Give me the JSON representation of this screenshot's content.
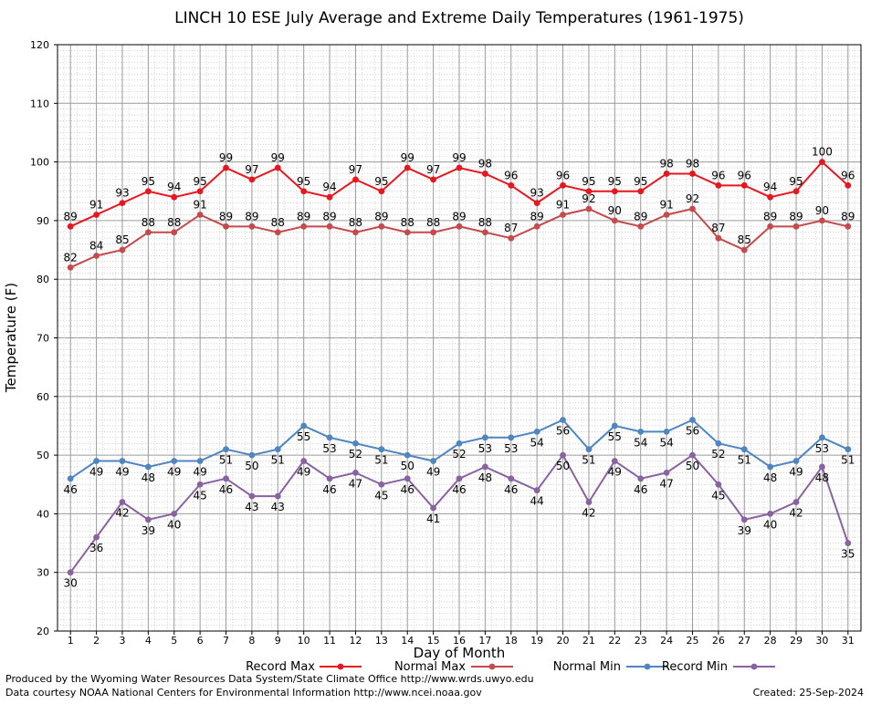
{
  "chart_data": {
    "type": "line",
    "title": "LINCH 10 ESE July Average and Extreme Daily Temperatures (1961-1975)",
    "xlabel": "Day of Month",
    "ylabel": "Temperature (F)",
    "ylim": [
      20,
      120
    ],
    "yticks": [
      20,
      30,
      40,
      50,
      60,
      70,
      80,
      90,
      100,
      110,
      120
    ],
    "categories": [
      1,
      2,
      3,
      4,
      5,
      6,
      7,
      8,
      9,
      10,
      11,
      12,
      13,
      14,
      15,
      16,
      17,
      18,
      19,
      20,
      21,
      22,
      23,
      24,
      25,
      26,
      27,
      28,
      29,
      30,
      31
    ],
    "grid": true,
    "legend_position": "bottom",
    "series": [
      {
        "name": "Record Max",
        "color": "#e8161e",
        "label_pos": "above",
        "values": [
          89,
          91,
          93,
          95,
          94,
          95,
          99,
          97,
          99,
          95,
          94,
          97,
          95,
          99,
          97,
          99,
          98,
          96,
          93,
          96,
          95,
          95,
          95,
          98,
          98,
          96,
          96,
          94,
          95,
          100,
          96
        ]
      },
      {
        "name": "Normal Max",
        "color": "#c44a4d",
        "label_pos": "above",
        "values": [
          82,
          84,
          85,
          88,
          88,
          91,
          89,
          89,
          88,
          89,
          89,
          88,
          89,
          88,
          88,
          89,
          88,
          87,
          89,
          91,
          92,
          90,
          89,
          91,
          92,
          87,
          85,
          89,
          89,
          90,
          89
        ]
      },
      {
        "name": "Normal Min",
        "color": "#4f86c1",
        "label_pos": "below",
        "values": [
          46,
          49,
          49,
          48,
          49,
          49,
          51,
          50,
          51,
          55,
          53,
          52,
          51,
          50,
          49,
          52,
          53,
          53,
          54,
          56,
          51,
          55,
          54,
          54,
          56,
          52,
          51,
          48,
          49,
          53,
          51
        ]
      },
      {
        "name": "Record Min",
        "color": "#8a62a1",
        "label_pos": "below",
        "values": [
          30,
          36,
          42,
          39,
          40,
          45,
          46,
          43,
          43,
          49,
          46,
          47,
          45,
          46,
          41,
          46,
          48,
          46,
          44,
          50,
          42,
          49,
          46,
          47,
          50,
          45,
          39,
          40,
          42,
          48,
          35
        ]
      }
    ]
  },
  "footer": {
    "line1": "Produced by the Wyoming Water Resources Data System/State Climate Office http://www.wrds.uwyo.edu",
    "line2": "Data courtesy NOAA National Centers for Environmental Information http://www.ncei.noaa.gov",
    "created": "Created:  25-Sep-2024"
  }
}
